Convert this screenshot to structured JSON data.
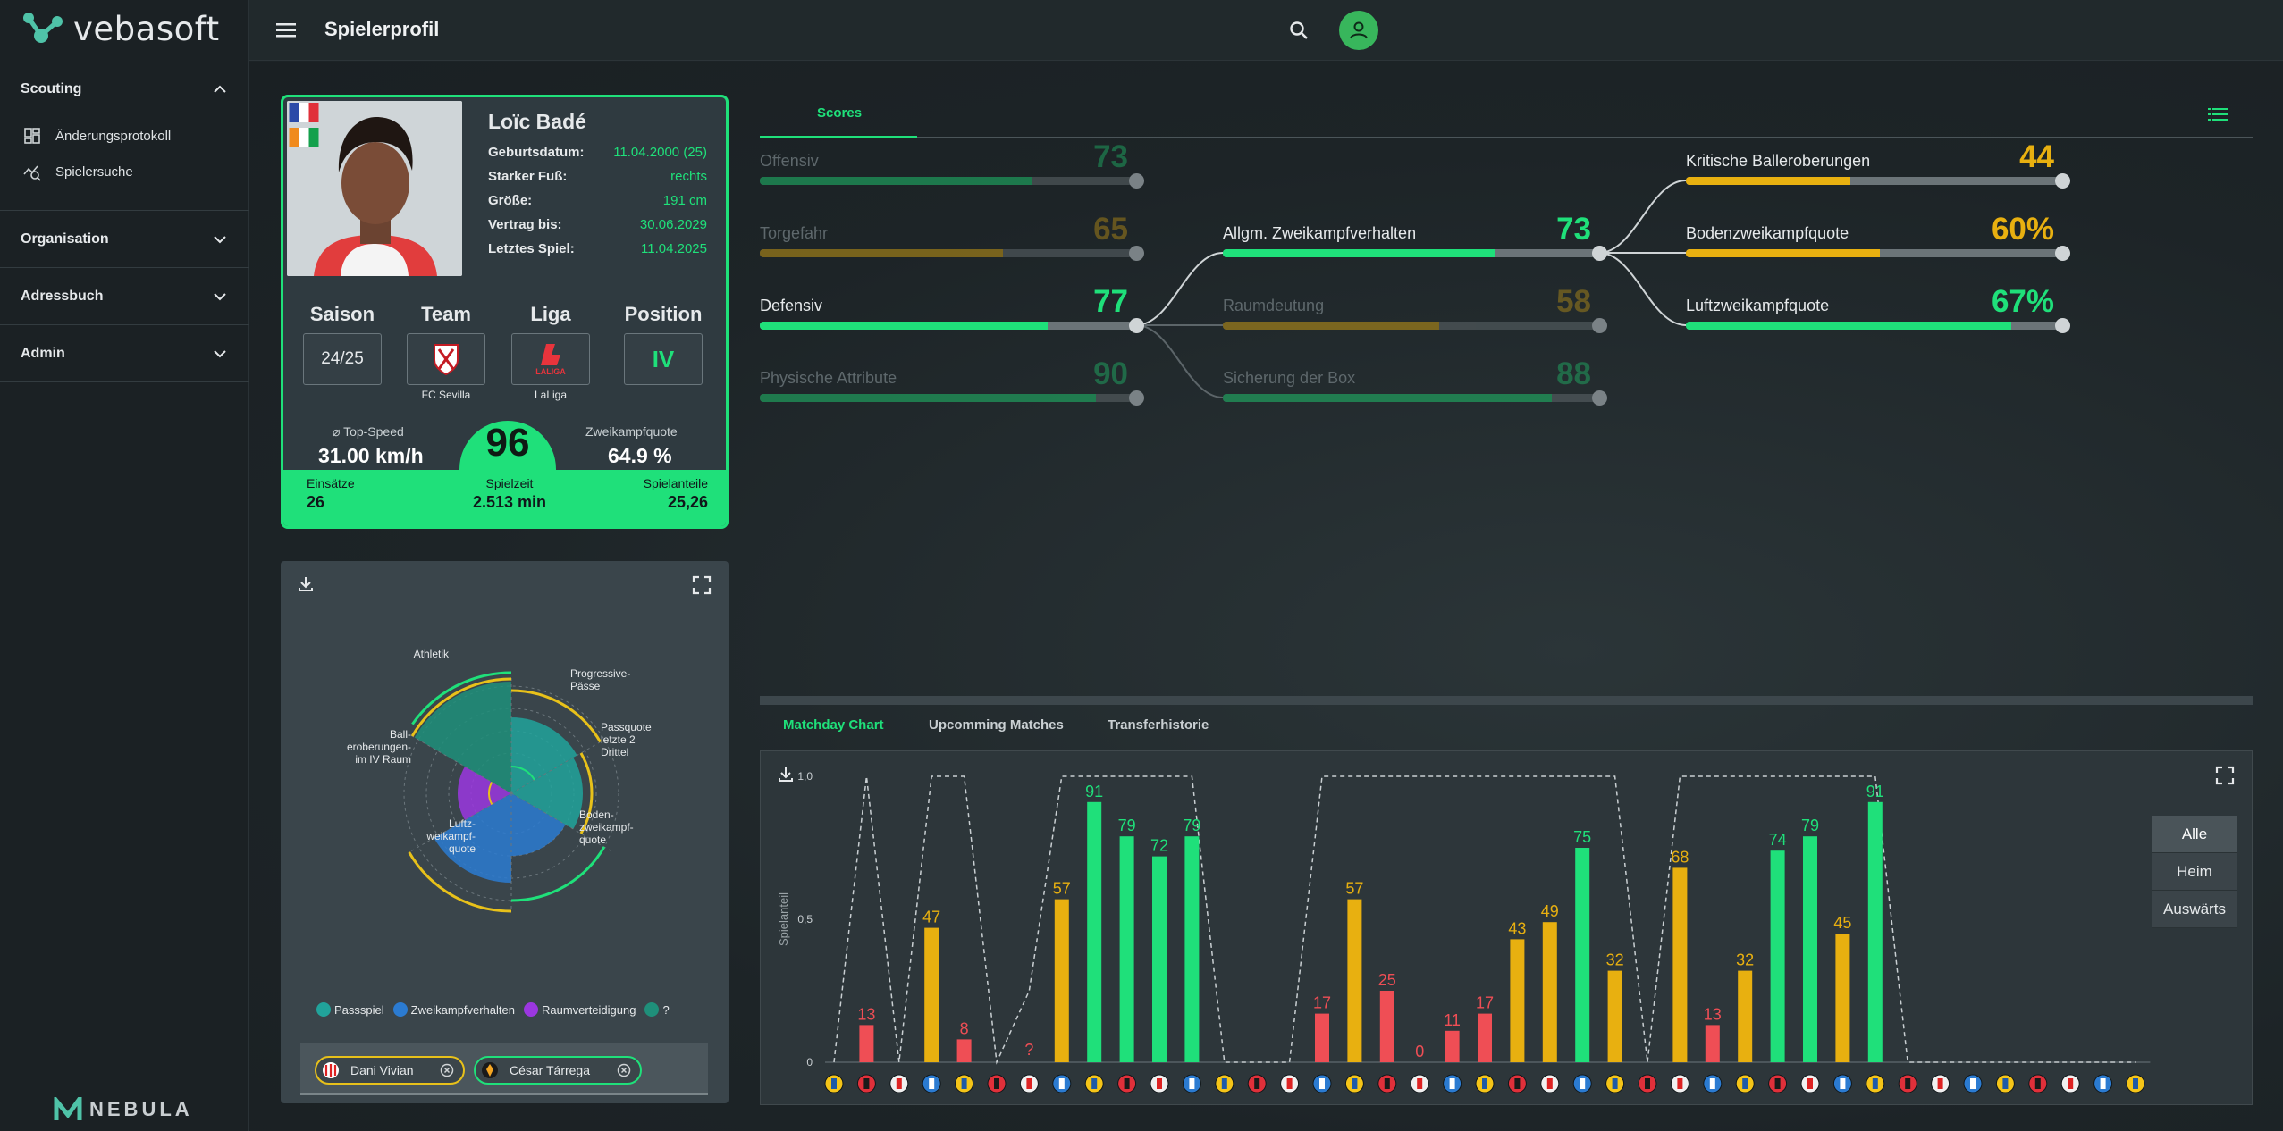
{
  "app": {
    "brand": "vebasoft",
    "footer_brand": "NEBULA",
    "page_title": "Spielerprofil"
  },
  "sidebar": {
    "sections": [
      {
        "label": "Scouting",
        "items": [
          "Änderungsprotokoll",
          "Spielersuche"
        ]
      },
      {
        "label": "Organisation"
      },
      {
        "label": "Adressbuch"
      },
      {
        "label": "Admin"
      }
    ]
  },
  "player": {
    "name": "Loïc Badé",
    "fields": [
      {
        "label": "Geburtsdatum:",
        "value": "11.04.2000 (25)"
      },
      {
        "label": "Starker Fuß:",
        "value": "rechts"
      },
      {
        "label": "Größe:",
        "value": "191 cm"
      },
      {
        "label": "Vertrag bis:",
        "value": "30.06.2029"
      },
      {
        "label": "Letztes Spiel:",
        "value": "11.04.2025"
      }
    ],
    "attrs": [
      {
        "head": "Saison",
        "value": "24/25",
        "sub": ""
      },
      {
        "head": "Team",
        "value": "",
        "sub": "FC Sevilla"
      },
      {
        "head": "Liga",
        "value": "",
        "sub": "LaLiga"
      },
      {
        "head": "Position",
        "value": "IV",
        "sub": ""
      }
    ],
    "liga_logo_text": "LALIGA",
    "top_speed_label": "⌀ Top-Speed",
    "top_speed": "31.00 km/h",
    "duel_label": "Zweikampfquote",
    "duel": "64.9 %",
    "overall": "96",
    "einsaetze_label": "Einsätze",
    "einsaetze": "26",
    "spielzeit_label": "Spielzeit",
    "spielzeit": "2.513 min",
    "spielanteile_label": "Spielanteile",
    "spielanteile": "25,26"
  },
  "radar": {
    "axes": [
      "Progressive-\nPässe",
      "Passquote\nletzte 2\nDrittel",
      "Boden-\nzweikampf-\nquote",
      "Luftz-\nweikampf-\nquote",
      "Ball-\neroberungen-\nim IV Raum",
      "Athletik"
    ],
    "legend": [
      "Passspiel",
      "Zweikampfverhalten",
      "Raumverteidigung",
      "?"
    ],
    "colors": [
      "#21a39b",
      "#2b7bd1",
      "#9b37e0",
      "#1f8f7a"
    ],
    "compare": [
      "Dani Vivian",
      "César Tárrega"
    ]
  },
  "scores": {
    "tab": "Scores",
    "col1": [
      {
        "label": "Offensiv",
        "value": "73",
        "pct": 73,
        "color": "#1fe07a",
        "dim": true
      },
      {
        "label": "Torgefahr",
        "value": "65",
        "pct": 65,
        "color": "#e8b010",
        "dim": true
      },
      {
        "label": "Defensiv",
        "value": "77",
        "pct": 77,
        "color": "#1fe07a",
        "dim": false
      },
      {
        "label": "Physische Attribute",
        "value": "90",
        "pct": 90,
        "color": "#1fe07a",
        "dim": true
      }
    ],
    "col2": [
      {
        "label": "Allgm. Zweikampfverhalten",
        "value": "73",
        "pct": 73,
        "color": "#1fe07a",
        "dim": false
      },
      {
        "label": "Raumdeutung",
        "value": "58",
        "pct": 58,
        "color": "#e8b010",
        "dim": true
      },
      {
        "label": "Sicherung der Box",
        "value": "88",
        "pct": 88,
        "color": "#1fe07a",
        "dim": true
      }
    ],
    "col3": [
      {
        "label": "Kritische Balleroberungen",
        "value": "44",
        "pct": 44,
        "color": "#e8b010",
        "dim": false
      },
      {
        "label": "Bodenzweikampfquote",
        "value": "60%",
        "pct": 52,
        "color": "#e8b010",
        "dim": false
      },
      {
        "label": "Luftzweikampfquote",
        "value": "67%",
        "pct": 87,
        "color": "#1fe07a",
        "dim": false
      }
    ]
  },
  "bottom": {
    "tabs": [
      "Matchday Chart",
      "Upcomming Matches",
      "Transferhistorie"
    ],
    "toggles": [
      "Alle",
      "Heim",
      "Auswärts"
    ]
  },
  "chart_data": {
    "type": "bar",
    "ylabel": "Spielanteil",
    "ytick_labels": [
      "1,0",
      "0,5",
      "0"
    ],
    "ylim": [
      0,
      100
    ],
    "values": [
      null,
      13,
      null,
      47,
      8,
      null,
      null,
      57,
      91,
      79,
      72,
      79,
      null,
      null,
      null,
      17,
      57,
      25,
      0,
      11,
      17,
      43,
      49,
      75,
      32,
      null,
      68,
      13,
      32,
      74,
      79,
      45,
      91,
      null,
      null,
      null,
      null,
      null,
      null,
      null,
      null
    ],
    "labels": [
      "",
      "13",
      "",
      "47",
      "8",
      "",
      "?",
      "57",
      "91",
      "79",
      "72",
      "79",
      "",
      "",
      "",
      "17",
      "57",
      "25",
      "0",
      "11",
      "17",
      "43",
      "49",
      "75",
      "32",
      "",
      "68",
      "13",
      "32",
      "74",
      "79",
      "45",
      "91",
      "",
      "",
      "",
      "",
      "",
      "",
      "",
      ""
    ],
    "availability": [
      0,
      1,
      0,
      1,
      1,
      0,
      0.25,
      1,
      1,
      1,
      1,
      1,
      0,
      0,
      0,
      1,
      1,
      1,
      1,
      1,
      1,
      1,
      1,
      1,
      1,
      0,
      1,
      1,
      1,
      1,
      1,
      1,
      1,
      0,
      0,
      0,
      0,
      0,
      0,
      0,
      0
    ],
    "colors": {
      "high": "#1fe07a",
      "mid": "#e8b010",
      "low": "#ef4e55"
    }
  }
}
